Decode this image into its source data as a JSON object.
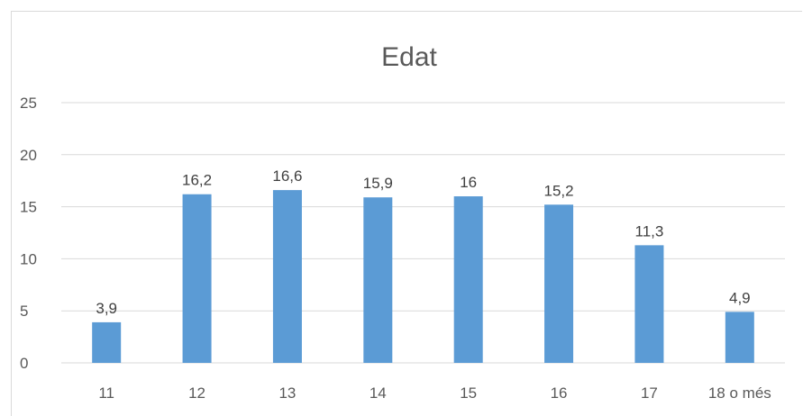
{
  "chart_data": {
    "type": "bar",
    "title": "Edat",
    "xlabel": "",
    "ylabel": "",
    "categories": [
      "11",
      "12",
      "13",
      "14",
      "15",
      "16",
      "17",
      "18 o més"
    ],
    "values": [
      3.9,
      16.2,
      16.6,
      15.9,
      16,
      15.2,
      11.3,
      4.9
    ],
    "data_labels": [
      "3,9",
      "16,2",
      "16,6",
      "15,9",
      "16",
      "15,2",
      "11,3",
      "4,9"
    ],
    "ylim": [
      0,
      25
    ],
    "yticks": [
      0,
      5,
      10,
      15,
      20,
      25
    ],
    "grid": true,
    "legend": "none",
    "bar_color": "#5b9bd5",
    "grid_color": "#d9d9d9"
  }
}
